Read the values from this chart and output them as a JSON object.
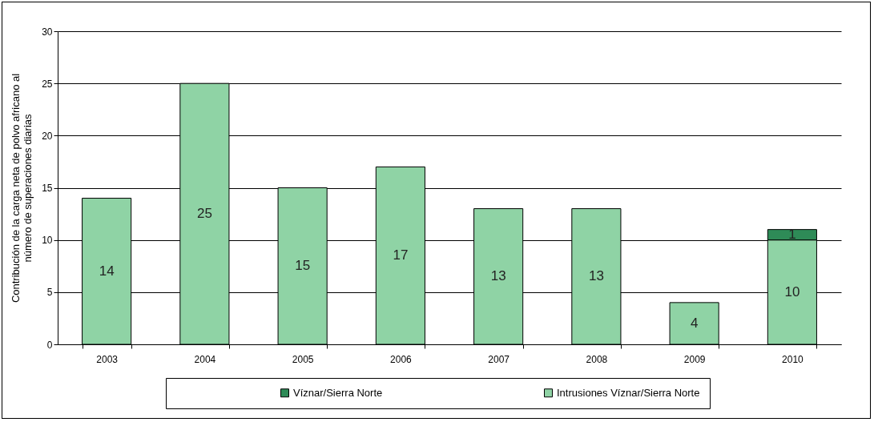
{
  "chart_data": {
    "type": "bar",
    "stacked": true,
    "ylabel": "Contribución de la carga neta de polvo africano al\nnúmero de superaciones diarias",
    "categories": [
      "2003",
      "2004",
      "2005",
      "2006",
      "2007",
      "2008",
      "2009",
      "2010"
    ],
    "series": [
      {
        "name": "Intrusiones Víznar/Sierra Norte",
        "color": "#8fd3a5",
        "values": [
          14,
          25,
          15,
          17,
          13,
          13,
          4,
          10
        ]
      },
      {
        "name": "Víznar/Sierra Norte",
        "color": "#2e8b57",
        "values": [
          null,
          null,
          null,
          null,
          null,
          null,
          null,
          1
        ]
      }
    ],
    "ylim": [
      0,
      30
    ],
    "yticks": [
      0,
      5,
      10,
      15,
      20,
      25,
      30
    ],
    "grid": "y",
    "legend": "bottom",
    "data_labels": true
  }
}
